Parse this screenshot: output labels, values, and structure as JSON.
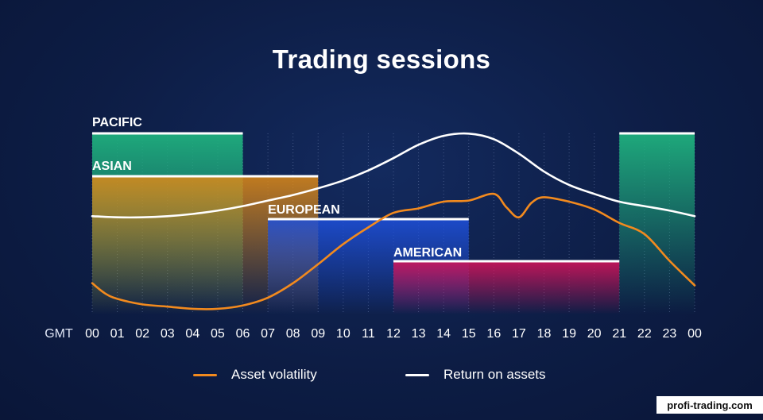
{
  "title": "Trading sessions",
  "watermark": "profi-trading.com",
  "chart_data": {
    "type": "line",
    "title": "Trading sessions",
    "xlabel": "GMT",
    "x_ticks": [
      "00",
      "01",
      "02",
      "03",
      "04",
      "05",
      "06",
      "07",
      "08",
      "09",
      "10",
      "11",
      "12",
      "13",
      "14",
      "15",
      "16",
      "17",
      "18",
      "19",
      "20",
      "21",
      "22",
      "23",
      "00"
    ],
    "xlim": [
      0,
      24
    ],
    "sessions": [
      {
        "name": "PACIFIC",
        "start": 0,
        "end": 6,
        "color": "#1fb07e",
        "extra": [
          {
            "start": 21,
            "end": 24
          }
        ]
      },
      {
        "name": "ASIAN",
        "start": 0,
        "end": 9,
        "color": "#e08a16"
      },
      {
        "name": "EUROPEAN",
        "start": 7,
        "end": 15,
        "color": "#1e4fd8"
      },
      {
        "name": "AMERICAN",
        "start": 12,
        "end": 21,
        "color": "#d1145a"
      }
    ],
    "series": [
      {
        "name": "Asset volatility",
        "color": "#f28a1e",
        "x": [
          0,
          0.5,
          1,
          2,
          3,
          4,
          5,
          6,
          7,
          8,
          9,
          10,
          11,
          12,
          13,
          14,
          15,
          16,
          16.5,
          17,
          17.5,
          18,
          19,
          20,
          21,
          22,
          23,
          24
        ],
        "y": [
          28,
          19,
          14,
          9,
          7,
          5,
          5,
          8,
          15,
          28,
          45,
          63,
          78,
          91,
          95,
          101,
          102,
          108,
          96,
          87,
          100,
          105,
          101,
          94,
          82,
          72,
          48,
          26
        ]
      },
      {
        "name": "Return on assets",
        "color": "#ffffff",
        "x": [
          0,
          1,
          2,
          3,
          4,
          5,
          6,
          7,
          8,
          9,
          10,
          11,
          12,
          13,
          14,
          15,
          16,
          17,
          18,
          19,
          20,
          21,
          22,
          23,
          24
        ],
        "y": [
          88,
          87,
          87,
          88,
          90,
          93,
          97,
          102,
          107,
          113,
          120,
          129,
          140,
          152,
          160,
          162,
          157,
          144,
          128,
          116,
          108,
          101,
          97,
          93,
          88
        ]
      }
    ],
    "ylim": [
      0,
      175
    ],
    "legend_position": "bottom",
    "grid": "vertical dotted"
  }
}
